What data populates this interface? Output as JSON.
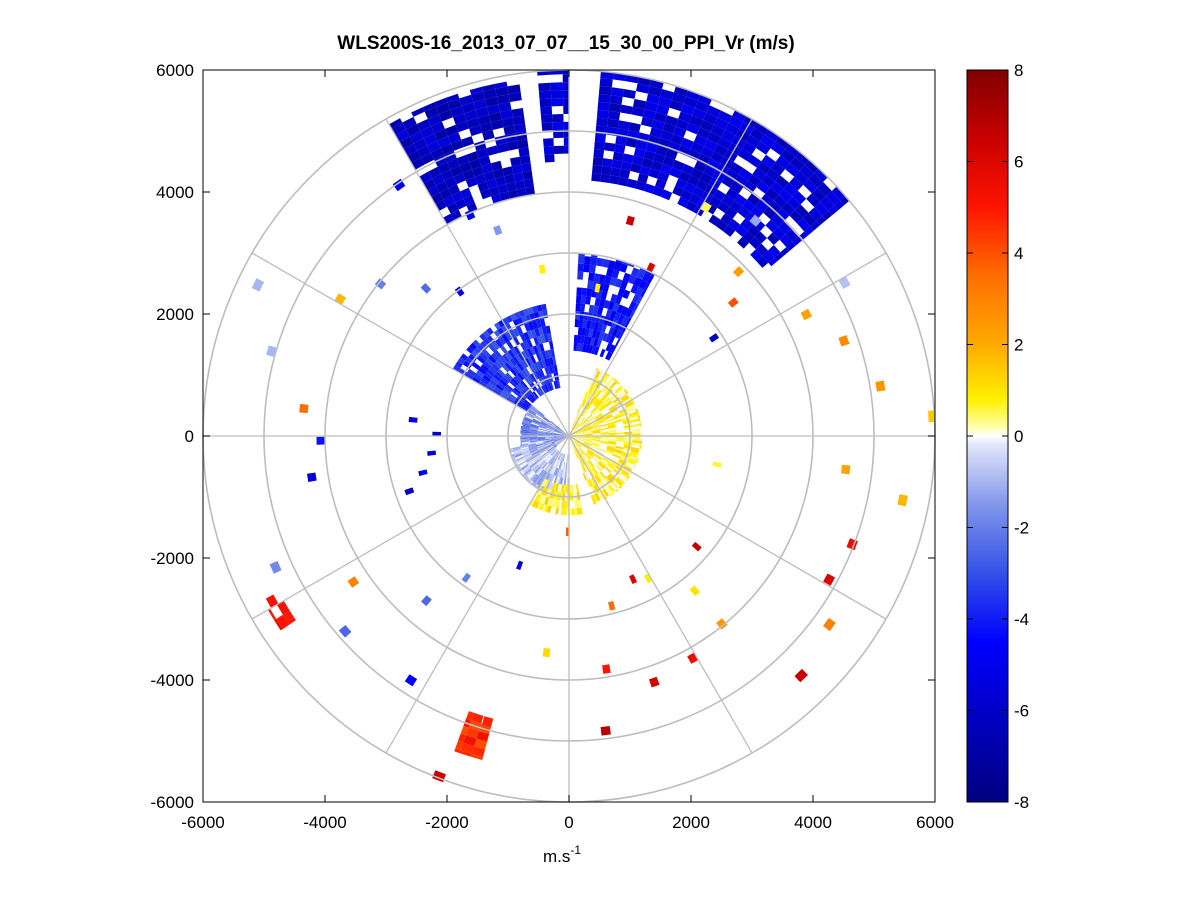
{
  "chart_data": {
    "type": "heatmap",
    "subtype": "polar-ppi",
    "title": "WLS200S-16_2013_07_07__15_30_00_PPI_Vr (m/s)",
    "xlabel": "m.s",
    "xlabel_superscript": "-1",
    "ylabel": "",
    "xlim": [
      -6000,
      6000
    ],
    "ylim": [
      -6000,
      6000
    ],
    "xticks": [
      "-6000",
      "-4000",
      "-2000",
      "0",
      "2000",
      "4000",
      "6000"
    ],
    "yticks": [
      "6000",
      "4000",
      "2000",
      "0",
      "-2000",
      "-4000",
      "-6000"
    ],
    "polar_grid": {
      "ring_radii": [
        1000,
        2000,
        3000,
        4000,
        5000,
        6000
      ],
      "spoke_angles_deg": [
        0,
        30,
        60,
        90,
        120,
        150,
        180,
        210,
        240,
        270,
        300,
        330
      ]
    },
    "colorbar": {
      "label": "Vr (m/s)",
      "range": [
        -8,
        8
      ],
      "ticks": [
        "8",
        "6",
        "4",
        "2",
        "0",
        "-2",
        "-4",
        "-6",
        "-8"
      ]
    },
    "regions": [
      {
        "name": "north-northwest-sector",
        "theta": [
          330,
          352
        ],
        "r": [
          4000,
          5900
        ],
        "vr": -6.2
      },
      {
        "name": "north-center-sector",
        "theta": [
          355,
          360
        ],
        "r": [
          4500,
          6000
        ],
        "vr": -5.8
      },
      {
        "name": "north-northeast-sector",
        "theta": [
          5,
          50
        ],
        "r": [
          4200,
          6000
        ],
        "vr": -5.7
      },
      {
        "name": "inner-north-sector",
        "theta": [
          3,
          28
        ],
        "r": [
          1400,
          3000
        ],
        "vr": -4.2
      },
      {
        "name": "inner-northwest-sector",
        "theta": [
          300,
          350
        ],
        "r": [
          800,
          2200
        ],
        "vr": -3.6
      },
      {
        "name": "inner-west-near-center",
        "theta": [
          230,
          310
        ],
        "r": [
          0,
          800
        ],
        "vr": -2.0
      },
      {
        "name": "inner-southwest-arc",
        "theta": [
          180,
          260
        ],
        "r": [
          300,
          1000
        ],
        "vr": -0.8
      },
      {
        "name": "inner-east-yellow",
        "theta": [
          20,
          160
        ],
        "r": [
          0,
          1200
        ],
        "vr": 0.6
      },
      {
        "name": "south-near-yellow",
        "theta": [
          170,
          210
        ],
        "r": [
          800,
          1300
        ],
        "vr": 0.8
      },
      {
        "name": "south-southwest-red-block",
        "theta": [
          195,
          200
        ],
        "r": [
          4800,
          5500
        ],
        "vr": 4.8
      },
      {
        "name": "southwest-red-block",
        "theta": [
          236,
          240
        ],
        "r": [
          5400,
          5700
        ],
        "vr": 5.0
      }
    ]
  }
}
